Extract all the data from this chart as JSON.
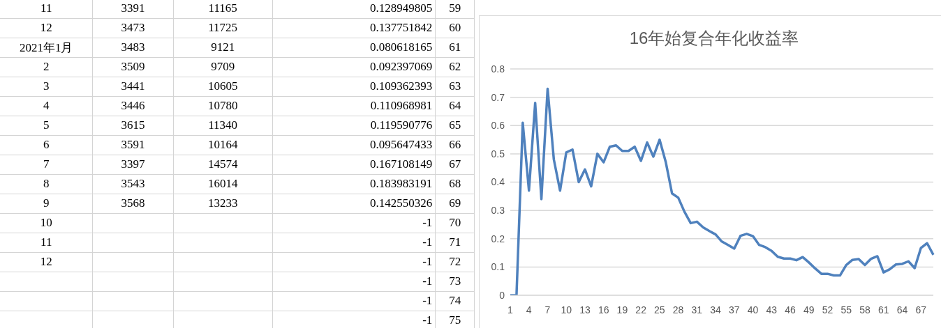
{
  "chart_data": [
    {
      "type": "other",
      "cell_labels": [
        [
          "11",
          "3391",
          "11165",
          "0.128949805",
          "59"
        ],
        [
          "12",
          "3473",
          "11725",
          "0.137751842",
          "60"
        ],
        [
          "2021年1月",
          "3483",
          "9121",
          "0.080618165",
          "61"
        ],
        [
          "2",
          "3509",
          "9709",
          "0.092397069",
          "62"
        ],
        [
          "3",
          "3441",
          "10605",
          "0.109362393",
          "63"
        ],
        [
          "4",
          "3446",
          "10780",
          "0.110968981",
          "64"
        ],
        [
          "5",
          "3615",
          "11340",
          "0.119590776",
          "65"
        ],
        [
          "6",
          "3591",
          "10164",
          "0.095647433",
          "66"
        ],
        [
          "7",
          "3397",
          "14574",
          "0.167108149",
          "67"
        ],
        [
          "8",
          "3543",
          "16014",
          "0.183983191",
          "68"
        ],
        [
          "9",
          "3568",
          "13233",
          "0.142550326",
          "69"
        ],
        [
          "10",
          null,
          null,
          "-1",
          "70"
        ],
        [
          "11",
          null,
          null,
          "-1",
          "71"
        ],
        [
          "12",
          null,
          null,
          "-1",
          "72"
        ],
        [
          null,
          null,
          null,
          "-1",
          "73"
        ],
        [
          null,
          null,
          null,
          "-1",
          "74"
        ],
        [
          null,
          null,
          null,
          "-1",
          "75"
        ]
      ]
    },
    {
      "type": "line",
      "title": "16年始复合年化收益率",
      "categories": [
        "1",
        null,
        null,
        "4",
        null,
        null,
        "7",
        null,
        null,
        "10",
        null,
        null,
        "13",
        null,
        null,
        "16",
        null,
        null,
        "19",
        null,
        null,
        "22",
        null,
        null,
        "25",
        null,
        null,
        "28",
        null,
        null,
        "31",
        null,
        null,
        "34",
        null,
        null,
        "37",
        null,
        null,
        "40",
        null,
        null,
        "43",
        null,
        null,
        "46",
        null,
        null,
        "49",
        null,
        null,
        "52",
        null,
        null,
        "55",
        null,
        null,
        "58",
        null,
        null,
        "61",
        null,
        null,
        "64",
        null,
        null,
        "67",
        null,
        null
      ],
      "series": [
        {
          "color": "#4f81bd",
          "values": [
            0,
            0,
            0.61,
            0.37,
            0.68,
            0.34,
            0.73,
            0.48,
            0.37,
            0.505,
            0.515,
            0.4,
            0.445,
            0.385,
            0.5,
            0.47,
            0.525,
            0.53,
            0.51,
            0.51,
            0.525,
            0.475,
            0.54,
            0.49,
            0.55,
            0.47,
            0.36,
            0.345,
            0.295,
            0.255,
            0.26,
            0.24,
            0.227,
            0.215,
            0.19,
            0.178,
            0.165,
            0.21,
            0.217,
            0.209,
            0.178,
            0.17,
            0.157,
            0.136,
            0.13,
            0.13,
            0.124,
            0.135,
            0.116,
            0.095,
            0.076,
            0.076,
            0.07,
            0.07,
            0.107,
            0.125,
            0.128,
            0.107,
            0.129,
            0.138,
            0.081,
            0.092,
            0.109,
            0.111,
            0.12,
            0.096,
            0.167,
            0.184,
            0.143
          ]
        }
      ],
      "ylim": [
        0,
        0.8
      ],
      "yticks": [
        0,
        0.1,
        0.2,
        0.3,
        0.4,
        0.5,
        0.6,
        0.7,
        0.8
      ],
      "grid": "y"
    }
  ]
}
